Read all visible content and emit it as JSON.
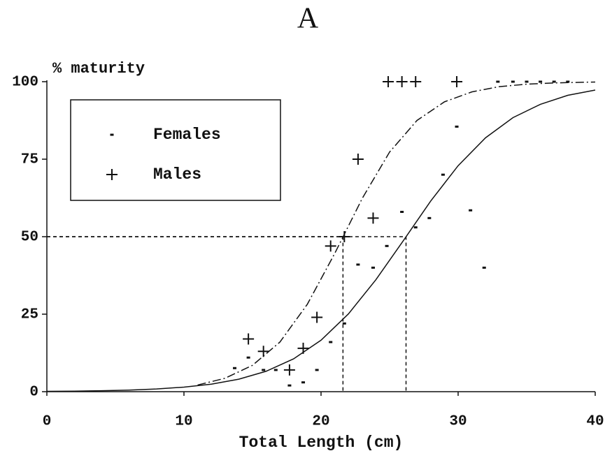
{
  "chart_data": {
    "type": "scatter",
    "title": "A",
    "xlabel": "Total Length (cm)",
    "ylabel": "% maturity",
    "xlim": [
      0,
      40
    ],
    "ylim": [
      0,
      100
    ],
    "xticks": [
      0,
      10,
      20,
      30,
      40
    ],
    "yticks": [
      0,
      25,
      50,
      75,
      100
    ],
    "legend": "upper left",
    "series": [
      {
        "name": "Females",
        "color": "#111111",
        "marker": "dot",
        "x": [
          13.7,
          14.7,
          15.8,
          16.7,
          17.7,
          18.7,
          19.7,
          20.7,
          21.7,
          22.7,
          23.8,
          24.8,
          25.9,
          26.9,
          27.9,
          28.9,
          29.9,
          30.9,
          31.9,
          32.9,
          34,
          35,
          36,
          37,
          38
        ],
        "values": [
          7.6,
          11,
          7,
          7,
          2,
          3,
          7,
          16,
          22,
          41,
          40,
          47,
          58,
          53,
          56,
          70,
          85.5,
          58.5,
          40,
          100,
          100,
          100,
          100,
          100,
          100
        ]
      },
      {
        "name": "Males",
        "color": "#111111",
        "marker": "plus",
        "x": [
          14.7,
          15.8,
          17.7,
          18.7,
          19.7,
          20.7,
          21.7,
          22.7,
          23.8,
          24.9,
          25.9,
          26.9,
          29.9
        ],
        "values": [
          17,
          13,
          7,
          14,
          24,
          47,
          50,
          75,
          56,
          100,
          100,
          100,
          100
        ]
      }
    ],
    "curves": [
      {
        "color": "#111111",
        "dash": "solid",
        "x": [
          0,
          2,
          4,
          6,
          8,
          10,
          12,
          14,
          16,
          18,
          20,
          22,
          24,
          26,
          28,
          30,
          32,
          34,
          36,
          38,
          40
        ],
        "values": [
          0.11,
          0.18,
          0.31,
          0.52,
          0.87,
          1.46,
          2.43,
          4.02,
          6.59,
          10.6,
          16.6,
          25.1,
          36.1,
          48.7,
          61.5,
          72.9,
          81.9,
          88.4,
          92.7,
          95.6,
          97.3
        ]
      },
      {
        "color": "#111111",
        "dash": "dash-dot",
        "x": [
          11,
          13,
          15,
          17,
          19,
          21,
          23,
          25,
          27,
          29,
          31,
          33,
          35,
          37,
          40
        ],
        "values": [
          2.15,
          4.33,
          8.5,
          16.0,
          28.2,
          44.6,
          62.3,
          77.3,
          87.5,
          93.5,
          96.7,
          98.4,
          99.2,
          99.6,
          99.9
        ]
      }
    ],
    "reference_lines": [
      {
        "x": 21.6,
        "y": 50
      },
      {
        "x": 26.2,
        "y": 50
      }
    ]
  }
}
